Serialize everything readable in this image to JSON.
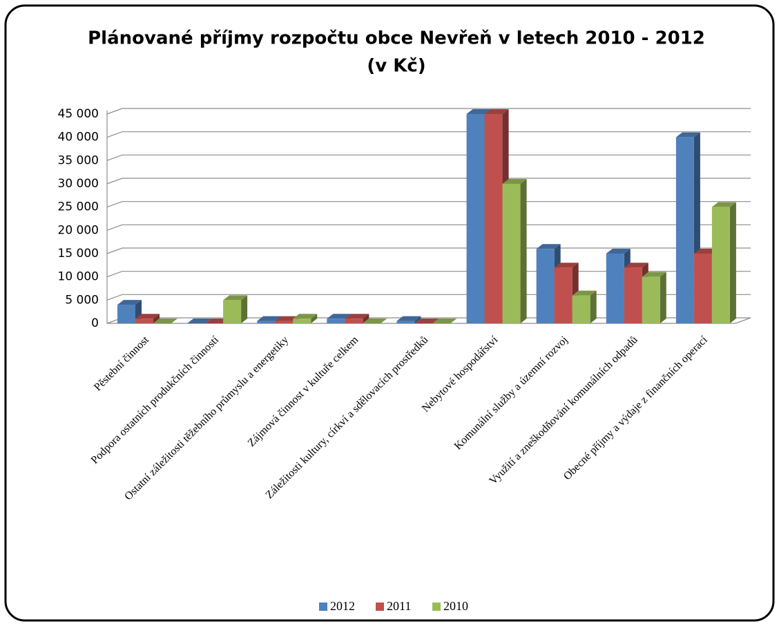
{
  "chart_data": {
    "type": "bar3d",
    "title": "Plánované příjmy rozpočtu obce Nevřeň v letech 2010 - 2012",
    "subtitle": "(v Kč)",
    "categories": [
      "Pěstební činnost",
      "Podpora ostatních produkčních činností",
      "Ostatní záležitosti těžebního průmyslu a energetiky",
      "Zájmová činnost v kultuře celkem",
      "Záležitosti kultury, církví a sdělovacích prostředků",
      "Nebytové hospodářství",
      "Komunální služby a územní rozvoj",
      "Využití a zneškodňování komunálních odpadů",
      "Obecné příjmy a výdaje z finančních operací"
    ],
    "series": [
      {
        "name": "2012",
        "color": "#4f81bd",
        "values": [
          4000,
          0,
          500,
          1000,
          500,
          45000,
          16000,
          15000,
          40000
        ]
      },
      {
        "name": "2011",
        "color": "#c0504d",
        "values": [
          1000,
          0,
          500,
          1000,
          0,
          45000,
          12000,
          12000,
          15000
        ]
      },
      {
        "name": "2010",
        "color": "#9bbb59",
        "values": [
          0,
          5000,
          1000,
          0,
          0,
          30000,
          6000,
          10000,
          25000
        ]
      }
    ],
    "ylim": [
      0,
      45000
    ],
    "yticks": [
      0,
      {
        "value": 5000,
        "label": "5 000"
      },
      {
        "value": 10000,
        "label": "10 000"
      },
      {
        "value": 15000,
        "label": "15 000"
      },
      {
        "value": 20000,
        "label": "20 000"
      },
      {
        "value": 25000,
        "label": "25 000"
      },
      {
        "value": 30000,
        "label": "30 000"
      },
      {
        "value": 35000,
        "label": "35 000"
      },
      {
        "value": 40000,
        "label": "40 000"
      },
      {
        "value": 45000,
        "label": "45 000"
      }
    ],
    "grid": true,
    "legend": "bottom"
  }
}
